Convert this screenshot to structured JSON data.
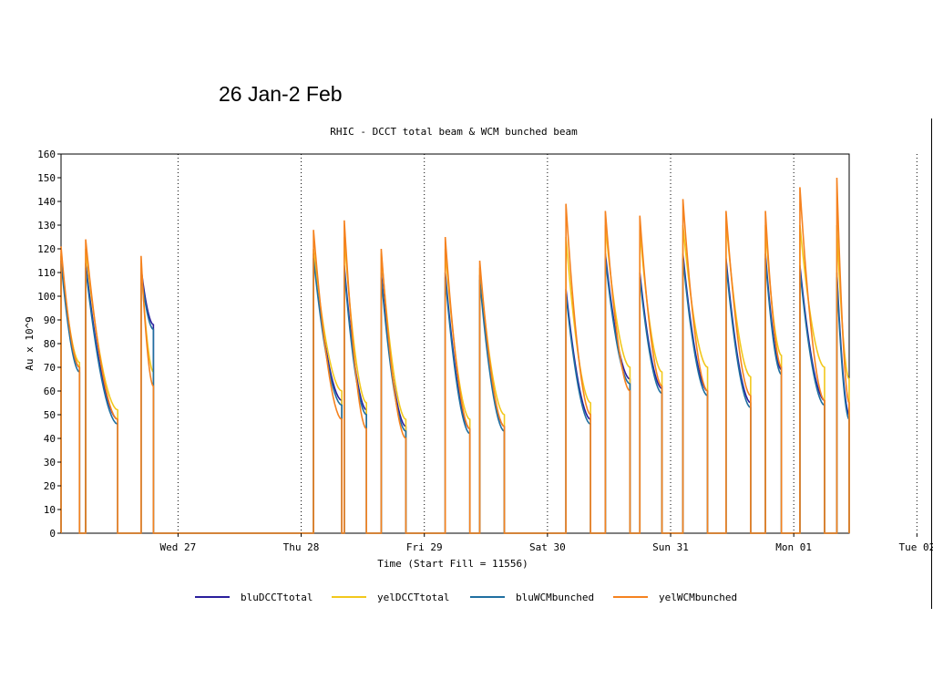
{
  "slide": {
    "title": "26 Jan-2 Feb"
  },
  "colors": {
    "bluDCCTtotal": "#2a1e9c",
    "yelDCCTtotal": "#f2c81c",
    "bluWCMbunched": "#1f6fa0",
    "yelWCMbunched": "#f5821f",
    "grid": "#000000"
  },
  "chart_data": {
    "type": "line",
    "title": "RHIC  -  DCCT total beam & WCM bunched beam",
    "xlabel": "Time (Start Fill = 11556)",
    "ylabel": "Au x 10^9",
    "ylim": [
      0,
      160
    ],
    "yticks": [
      0,
      10,
      20,
      30,
      40,
      50,
      60,
      70,
      80,
      90,
      100,
      110,
      120,
      130,
      140,
      150,
      160
    ],
    "xlim": [
      0,
      6.4
    ],
    "xticks": [
      {
        "x": 1,
        "label": "Wed 27"
      },
      {
        "x": 2,
        "label": "Thu 28"
      },
      {
        "x": 3,
        "label": "Fri 29"
      },
      {
        "x": 4,
        "label": "Sat 30"
      },
      {
        "x": 5,
        "label": "Sun 31"
      },
      {
        "x": 6,
        "label": "Mon 01"
      },
      {
        "x": 7,
        "label": "Tue 02"
      }
    ],
    "x_origin_day": 26.05,
    "grid": "dotted vertical lines at day boundaries",
    "legend_position": "bottom",
    "series": [
      {
        "name": "bluDCCTtotal",
        "fills": [
          [
            0.0,
            0.15,
            117,
            70
          ],
          [
            0.2,
            0.46,
            114,
            48
          ],
          [
            0.65,
            0.75,
            112,
            88
          ],
          [
            2.05,
            2.28,
            118,
            56
          ],
          [
            2.3,
            2.48,
            113,
            52
          ],
          [
            2.6,
            2.8,
            110,
            45
          ],
          [
            3.12,
            3.32,
            110,
            44
          ],
          [
            3.4,
            3.6,
            109,
            45
          ],
          [
            4.1,
            4.3,
            103,
            48
          ],
          [
            4.42,
            4.62,
            118,
            65
          ],
          [
            4.7,
            4.88,
            110,
            61
          ],
          [
            5.05,
            5.25,
            118,
            60
          ],
          [
            5.4,
            5.6,
            116,
            55
          ],
          [
            5.72,
            5.85,
            118,
            69
          ],
          [
            6.0,
            6.2,
            113,
            56
          ],
          [
            6.3,
            6.4,
            110,
            50
          ]
        ]
      },
      {
        "name": "yelDCCTtotal",
        "fills": [
          [
            0.0,
            0.15,
            118,
            72
          ],
          [
            0.2,
            0.46,
            120,
            52
          ],
          [
            0.65,
            0.75,
            114,
            68
          ],
          [
            2.05,
            2.28,
            120,
            60
          ],
          [
            2.3,
            2.48,
            125,
            55
          ],
          [
            2.6,
            2.8,
            118,
            48
          ],
          [
            3.12,
            3.32,
            120,
            48
          ],
          [
            3.4,
            3.6,
            112,
            50
          ],
          [
            4.1,
            4.3,
            125,
            55
          ],
          [
            4.42,
            4.62,
            130,
            70
          ],
          [
            4.7,
            4.88,
            128,
            68
          ],
          [
            5.05,
            5.25,
            130,
            70
          ],
          [
            5.4,
            5.6,
            132,
            66
          ],
          [
            5.72,
            5.85,
            130,
            75
          ],
          [
            6.0,
            6.2,
            130,
            70
          ],
          [
            6.3,
            6.4,
            130,
            65
          ]
        ]
      },
      {
        "name": "bluWCMbunched",
        "fills": [
          [
            0.0,
            0.15,
            115,
            68
          ],
          [
            0.2,
            0.46,
            112,
            46
          ],
          [
            0.65,
            0.75,
            110,
            86
          ],
          [
            2.05,
            2.28,
            116,
            54
          ],
          [
            2.3,
            2.48,
            111,
            50
          ],
          [
            2.6,
            2.8,
            108,
            43
          ],
          [
            3.12,
            3.32,
            108,
            42
          ],
          [
            3.4,
            3.6,
            107,
            43
          ],
          [
            4.1,
            4.3,
            101,
            46
          ],
          [
            4.42,
            4.62,
            116,
            63
          ],
          [
            4.7,
            4.88,
            108,
            59
          ],
          [
            5.05,
            5.25,
            116,
            58
          ],
          [
            5.4,
            5.6,
            114,
            53
          ],
          [
            5.72,
            5.85,
            116,
            67
          ],
          [
            6.0,
            6.2,
            111,
            54
          ],
          [
            6.3,
            6.4,
            108,
            48
          ]
        ]
      },
      {
        "name": "yelWCMbunched",
        "fills": [
          [
            0.0,
            0.15,
            121,
            70
          ],
          [
            0.2,
            0.46,
            124,
            48
          ],
          [
            0.65,
            0.75,
            117,
            62
          ],
          [
            2.05,
            2.28,
            128,
            48
          ],
          [
            2.3,
            2.48,
            132,
            44
          ],
          [
            2.6,
            2.8,
            120,
            40
          ],
          [
            3.12,
            3.32,
            125,
            44
          ],
          [
            3.4,
            3.6,
            115,
            45
          ],
          [
            4.1,
            4.3,
            139,
            50
          ],
          [
            4.42,
            4.62,
            136,
            60
          ],
          [
            4.7,
            4.88,
            134,
            62
          ],
          [
            5.05,
            5.25,
            141,
            60
          ],
          [
            5.4,
            5.6,
            136,
            58
          ],
          [
            5.72,
            5.85,
            136,
            70
          ],
          [
            6.0,
            6.2,
            146,
            56
          ],
          [
            6.3,
            6.4,
            150,
            55
          ]
        ]
      }
    ]
  }
}
